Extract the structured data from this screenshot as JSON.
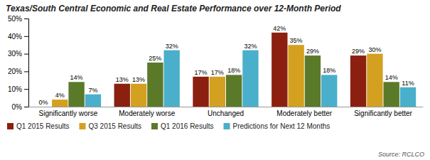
{
  "chart_data": {
    "type": "bar",
    "title": "Texas/South Central Economic and Real Estate Performance over 12-Month Period",
    "categories": [
      "Significantly worse",
      "Moderately worse",
      "Unchanged",
      "Moderately better",
      "Significantly better"
    ],
    "series": [
      {
        "name": "Q1 2015 Results",
        "color": "#8B2010",
        "values": [
          0,
          13,
          17,
          42,
          29
        ],
        "value_labels": [
          "0%",
          "13%",
          "17%",
          "42%",
          "29%"
        ]
      },
      {
        "name": "Q3 2015 Results",
        "color": "#D4A020",
        "values": [
          4,
          13,
          17,
          35,
          30
        ],
        "value_labels": [
          "4%",
          "13%",
          "17%",
          "35%",
          "30%"
        ]
      },
      {
        "name": "Q1 2016 Results",
        "color": "#5A7A2A",
        "values": [
          14,
          25,
          18,
          29,
          14
        ],
        "value_labels": [
          "14%",
          "25%",
          "18%",
          "29%",
          "14%"
        ]
      },
      {
        "name": "Predictions for Next 12 Months",
        "color": "#4AAFCA",
        "values": [
          7,
          32,
          32,
          18,
          11
        ],
        "value_labels": [
          "7%",
          "32%",
          "32%",
          "18%",
          "11%"
        ]
      }
    ],
    "ylim": [
      0,
      50
    ],
    "yticks": [
      {
        "value": 0,
        "label": "0%"
      },
      {
        "value": 10,
        "label": "10%"
      },
      {
        "value": 20,
        "label": "20%"
      },
      {
        "value": 30,
        "label": "30%"
      },
      {
        "value": 40,
        "label": "40%"
      },
      {
        "value": 50,
        "label": "50%"
      }
    ],
    "grid": false,
    "data_labels": true,
    "legend": "bottom",
    "annotations": [
      "Source: RCLCO"
    ]
  }
}
